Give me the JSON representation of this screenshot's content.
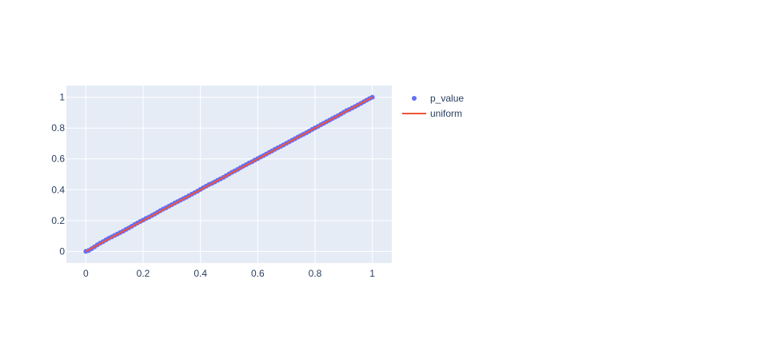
{
  "chart_data": {
    "type": "scatter",
    "title": "",
    "xlabel": "",
    "ylabel": "",
    "xlim": [
      -0.068,
      1.068
    ],
    "ylim": [
      -0.076,
      1.076
    ],
    "x_ticks": [
      {
        "value": 0,
        "label": "0"
      },
      {
        "value": 0.2,
        "label": "0.2"
      },
      {
        "value": 0.4,
        "label": "0.4"
      },
      {
        "value": 0.6,
        "label": "0.6"
      },
      {
        "value": 0.8,
        "label": "0.8"
      },
      {
        "value": 1,
        "label": "1"
      }
    ],
    "y_ticks": [
      {
        "value": 0,
        "label": "0"
      },
      {
        "value": 0.2,
        "label": "0.2"
      },
      {
        "value": 0.4,
        "label": "0.4"
      },
      {
        "value": 0.6,
        "label": "0.6"
      },
      {
        "value": 0.8,
        "label": "0.8"
      },
      {
        "value": 1,
        "label": "1"
      }
    ],
    "grid": true,
    "legend_position": "top-right outside",
    "series": [
      {
        "name": "p_value",
        "mode": "markers",
        "color": "#636efa",
        "x": [
          0,
          0.01,
          0.02,
          0.03,
          0.04,
          0.05,
          0.06,
          0.07,
          0.08,
          0.09,
          0.1,
          0.11,
          0.12,
          0.13,
          0.14,
          0.15,
          0.16,
          0.17,
          0.18,
          0.19,
          0.2,
          0.21,
          0.22,
          0.23,
          0.24,
          0.25,
          0.26,
          0.27,
          0.28,
          0.29,
          0.3,
          0.31,
          0.32,
          0.33,
          0.34,
          0.35,
          0.36,
          0.37,
          0.38,
          0.39,
          0.4,
          0.41,
          0.42,
          0.43,
          0.44,
          0.45,
          0.46,
          0.47,
          0.48,
          0.49,
          0.5,
          0.51,
          0.52,
          0.53,
          0.54,
          0.55,
          0.56,
          0.57,
          0.58,
          0.59,
          0.6,
          0.61,
          0.62,
          0.63,
          0.64,
          0.65,
          0.66,
          0.67,
          0.68,
          0.69,
          0.7,
          0.71,
          0.72,
          0.73,
          0.74,
          0.75,
          0.76,
          0.77,
          0.78,
          0.79,
          0.8,
          0.81,
          0.82,
          0.83,
          0.84,
          0.85,
          0.86,
          0.87,
          0.88,
          0.89,
          0.9,
          0.91,
          0.92,
          0.93,
          0.94,
          0.95,
          0.96,
          0.97,
          0.98,
          0.99,
          1
        ],
        "y": [
          0,
          0.006,
          0.017,
          0.029,
          0.042,
          0.053,
          0.063,
          0.074,
          0.085,
          0.093,
          0.103,
          0.112,
          0.122,
          0.131,
          0.142,
          0.152,
          0.163,
          0.174,
          0.184,
          0.194,
          0.203,
          0.213,
          0.222,
          0.232,
          0.242,
          0.253,
          0.264,
          0.274,
          0.283,
          0.293,
          0.303,
          0.313,
          0.322,
          0.332,
          0.342,
          0.351,
          0.361,
          0.371,
          0.381,
          0.391,
          0.402,
          0.413,
          0.423,
          0.433,
          0.441,
          0.451,
          0.461,
          0.47,
          0.48,
          0.491,
          0.502,
          0.513,
          0.522,
          0.532,
          0.543,
          0.553,
          0.563,
          0.573,
          0.582,
          0.592,
          0.602,
          0.612,
          0.621,
          0.632,
          0.642,
          0.652,
          0.662,
          0.672,
          0.681,
          0.691,
          0.701,
          0.711,
          0.721,
          0.731,
          0.741,
          0.751,
          0.76,
          0.77,
          0.78,
          0.791,
          0.801,
          0.811,
          0.821,
          0.831,
          0.841,
          0.851,
          0.861,
          0.871,
          0.88,
          0.891,
          0.902,
          0.913,
          0.921,
          0.931,
          0.94,
          0.95,
          0.96,
          0.97,
          0.981,
          0.991,
          1
        ]
      },
      {
        "name": "uniform",
        "mode": "lines",
        "color": "#ef553b",
        "x": [
          0,
          1
        ],
        "y": [
          0,
          1
        ]
      }
    ]
  },
  "colors": {
    "plot_background": "#e5ecf6",
    "grid": "#ffffff",
    "tick_text": "#2a3f5f"
  }
}
